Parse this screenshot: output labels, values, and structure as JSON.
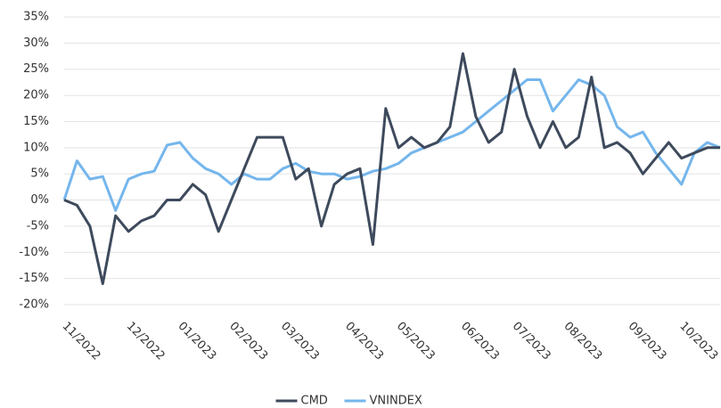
{
  "chart_data": {
    "type": "line",
    "categories": [
      "11/2022",
      null,
      null,
      null,
      null,
      "12/2022",
      null,
      null,
      null,
      "01/2023",
      null,
      null,
      null,
      "02/2023",
      null,
      null,
      null,
      "03/2023",
      null,
      null,
      null,
      null,
      "04/2023",
      null,
      null,
      null,
      "05/2023",
      null,
      null,
      null,
      null,
      "06/2023",
      null,
      null,
      null,
      "07/2023",
      null,
      null,
      null,
      "08/2023",
      null,
      null,
      null,
      null,
      "09/2023",
      null,
      null,
      null,
      "10/2023",
      null,
      null,
      null
    ],
    "series": [
      {
        "name": "CMD",
        "color": "#3e4a5c",
        "values": [
          0,
          -1,
          -5,
          -16,
          -3,
          -6,
          -4,
          -3,
          0,
          0,
          3,
          1,
          -6,
          0,
          6,
          12,
          12,
          12,
          4,
          6,
          -5,
          3,
          5,
          6,
          -8.5,
          17.5,
          10,
          12,
          10,
          11,
          14,
          28,
          16,
          11,
          13,
          25,
          16,
          10,
          15,
          10,
          12,
          23.5,
          10,
          11,
          9,
          5,
          8,
          11,
          8,
          9,
          10,
          10
        ]
      },
      {
        "name": "VNINDEX",
        "color": "#75b6ec",
        "values": [
          0,
          7.5,
          4,
          4.5,
          -2,
          4,
          5,
          5.5,
          10.5,
          11,
          8,
          6,
          5,
          3,
          5,
          4,
          4,
          6,
          7,
          5.5,
          5,
          5,
          4,
          4.5,
          5.5,
          6,
          7,
          9,
          10,
          11,
          12,
          13,
          15,
          17,
          19,
          21,
          23,
          23,
          17,
          20,
          23,
          22,
          20,
          14,
          12,
          13,
          9,
          6,
          3,
          9,
          11,
          10
        ]
      }
    ],
    "ylim": [
      -20,
      35
    ],
    "yticks": [
      {
        "value": -20,
        "label": "-20%"
      },
      {
        "value": -15,
        "label": "-15%"
      },
      {
        "value": -10,
        "label": "-10%"
      },
      {
        "value": -5,
        "label": "-5%"
      },
      {
        "value": 0,
        "label": "0%"
      },
      {
        "value": 5,
        "label": "5%"
      },
      {
        "value": 10,
        "label": "10%"
      },
      {
        "value": 15,
        "label": "15%"
      },
      {
        "value": 20,
        "label": "20%"
      },
      {
        "value": 25,
        "label": "25%"
      },
      {
        "value": 30,
        "label": "30%"
      },
      {
        "value": 35,
        "label": "35%"
      }
    ],
    "grid": true,
    "legend": "bottom"
  }
}
